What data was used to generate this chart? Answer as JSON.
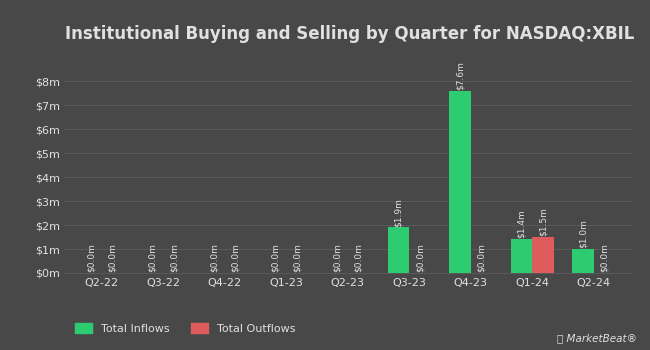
{
  "title": "Institutional Buying and Selling by Quarter for NASDAQ:XBIL",
  "quarters": [
    "Q2-22",
    "Q3-22",
    "Q4-22",
    "Q1-23",
    "Q2-23",
    "Q3-23",
    "Q4-23",
    "Q1-24",
    "Q2-24"
  ],
  "inflows": [
    0.0,
    0.0,
    0.0,
    0.0,
    0.0,
    1.9,
    7.6,
    1.4,
    1.0
  ],
  "outflows": [
    0.0,
    0.0,
    0.0,
    0.0,
    0.0,
    0.0,
    0.0,
    1.5,
    0.0
  ],
  "inflow_labels": [
    "$0.0m",
    "$0.0m",
    "$0.0m",
    "$0.0m",
    "$0.0m",
    "$1.9m",
    "$7.6m",
    "$1.4m",
    "$1.0m"
  ],
  "outflow_labels": [
    "$0.0m",
    "$0.0m",
    "$0.0m",
    "$0.0m",
    "$0.0m",
    "$0.0m",
    "$0.0m",
    "$1.5m",
    "$0.0m"
  ],
  "inflow_color": "#2ecc71",
  "outflow_color": "#e05c5c",
  "bg_color": "#484848",
  "plot_bg_color": "#484848",
  "text_color": "#e0e0e0",
  "grid_color": "#5a5a5a",
  "yticks": [
    0,
    1,
    2,
    3,
    4,
    5,
    6,
    7,
    8
  ],
  "ylim": [
    0,
    9.2
  ],
  "legend_inflow": "Total Inflows",
  "legend_outflow": "Total Outflows",
  "title_fontsize": 12,
  "tick_fontsize": 8,
  "label_fontsize": 6.5,
  "bar_width": 0.35
}
